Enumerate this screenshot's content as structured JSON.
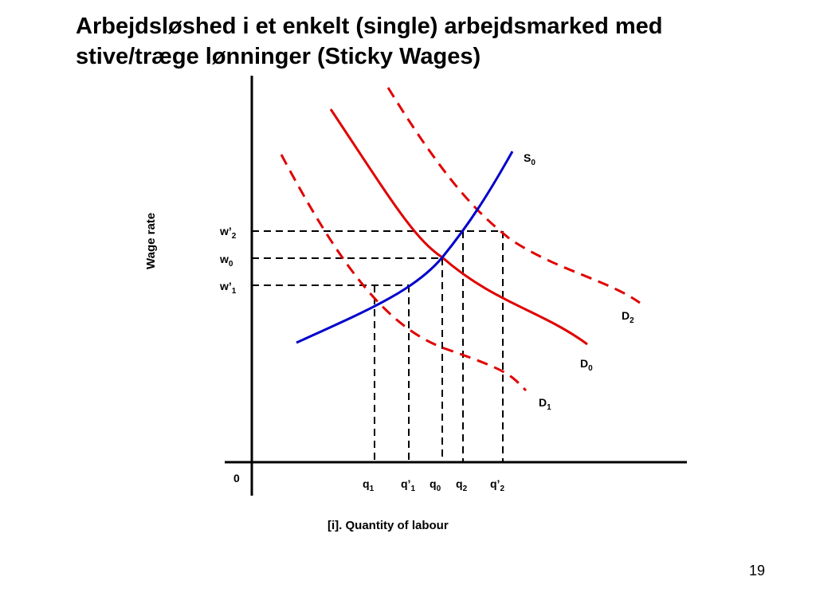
{
  "title": {
    "line1": "Arbejdsløshed i et enkelt (single) arbejdsmarked med",
    "line2": "stive/træge lønninger (Sticky Wages)"
  },
  "page_number": "19",
  "axes": {
    "y_label": "Wage rate",
    "x_label": "[i]. Quantity of labour",
    "origin": "0"
  },
  "curves": {
    "supply": {
      "main": "S",
      "sub": "0",
      "color": "#0000cc"
    },
    "demand_0": {
      "main": "D",
      "sub": "0",
      "color": "#e00000"
    },
    "demand_1": {
      "main": "D",
      "sub": "1",
      "color": "#e00000"
    },
    "demand_2": {
      "main": "D",
      "sub": "2",
      "color": "#e00000"
    }
  },
  "wage_levels": [
    {
      "main": "w’",
      "sub": "2"
    },
    {
      "main": "w",
      "sub": "0"
    },
    {
      "main": "w’",
      "sub": "1"
    }
  ],
  "quantity_levels": [
    {
      "main": "q",
      "sub": "1"
    },
    {
      "main": "q’",
      "sub": "1"
    },
    {
      "main": "q",
      "sub": "0"
    },
    {
      "main": "q",
      "sub": "2"
    },
    {
      "main": "q’",
      "sub": "2"
    }
  ]
}
